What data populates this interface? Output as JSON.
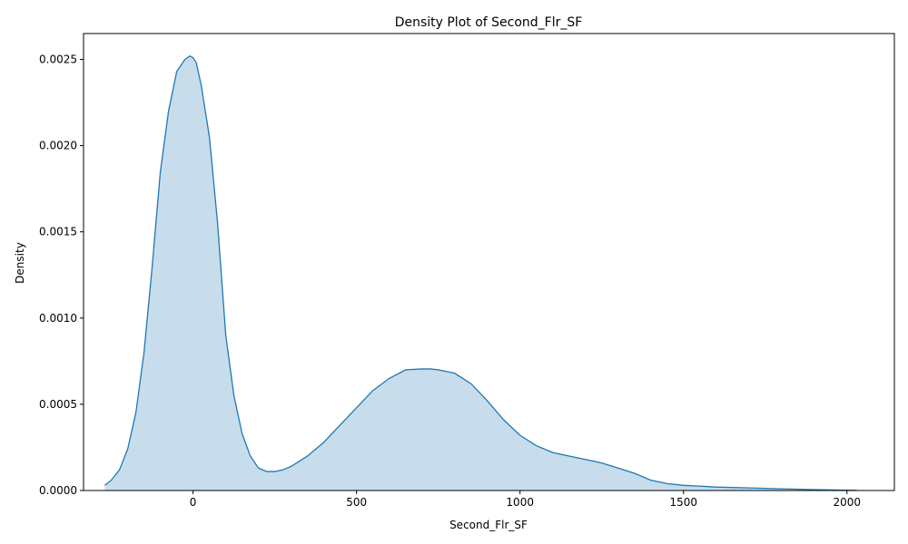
{
  "chart_data": {
    "type": "area",
    "title": "Density Plot of Second_Flr_SF",
    "xlabel": "Second_Flr_SF",
    "ylabel": "Density",
    "xlim": [
      -335,
      2145
    ],
    "ylim": [
      0,
      0.00265
    ],
    "grid": false,
    "legend": "none",
    "line_color": "#1f77b4",
    "fill_color": "#1f77b4",
    "fill_opacity": 0.25,
    "x_ticks": [
      0,
      500,
      1000,
      1500,
      2000
    ],
    "x_tick_labels": [
      "0",
      "500",
      "1000",
      "1500",
      "2000"
    ],
    "y_ticks": [
      0,
      0.0005,
      0.001,
      0.0015,
      0.002,
      0.0025
    ],
    "y_tick_labels": [
      "0.0000",
      "0.0005",
      "0.0010",
      "0.0015",
      "0.0020",
      "0.0025"
    ],
    "series": [
      {
        "x": [
          -270,
          -250,
          -225,
          -200,
          -175,
          -150,
          -125,
          -100,
          -75,
          -50,
          -25,
          -10,
          0,
          10,
          25,
          50,
          75,
          100,
          125,
          150,
          175,
          200,
          225,
          250,
          275,
          300,
          350,
          400,
          450,
          500,
          550,
          600,
          650,
          700,
          725,
          750,
          800,
          850,
          900,
          950,
          1000,
          1050,
          1100,
          1150,
          1200,
          1250,
          1300,
          1350,
          1400,
          1450,
          1500,
          1600,
          1700,
          1800,
          1900,
          2000,
          2030
        ],
        "y": [
          3e-05,
          6e-05,
          0.00012,
          0.00024,
          0.00045,
          0.0008,
          0.0013,
          0.00185,
          0.0022,
          0.00243,
          0.0025,
          0.00252,
          0.00251,
          0.00248,
          0.00235,
          0.00205,
          0.00155,
          0.0009,
          0.00055,
          0.00033,
          0.0002,
          0.00013,
          0.00011,
          0.00011,
          0.00012,
          0.00014,
          0.0002,
          0.00028,
          0.00038,
          0.00048,
          0.00058,
          0.00065,
          0.0007,
          0.000705,
          0.000705,
          0.0007,
          0.00068,
          0.00062,
          0.00052,
          0.00041,
          0.00032,
          0.00026,
          0.00022,
          0.0002,
          0.00018,
          0.00016,
          0.00013,
          0.0001,
          6e-05,
          4e-05,
          3e-05,
          2e-05,
          1.5e-05,
          1e-05,
          5e-06,
          2e-06,
          1e-06
        ]
      }
    ]
  }
}
